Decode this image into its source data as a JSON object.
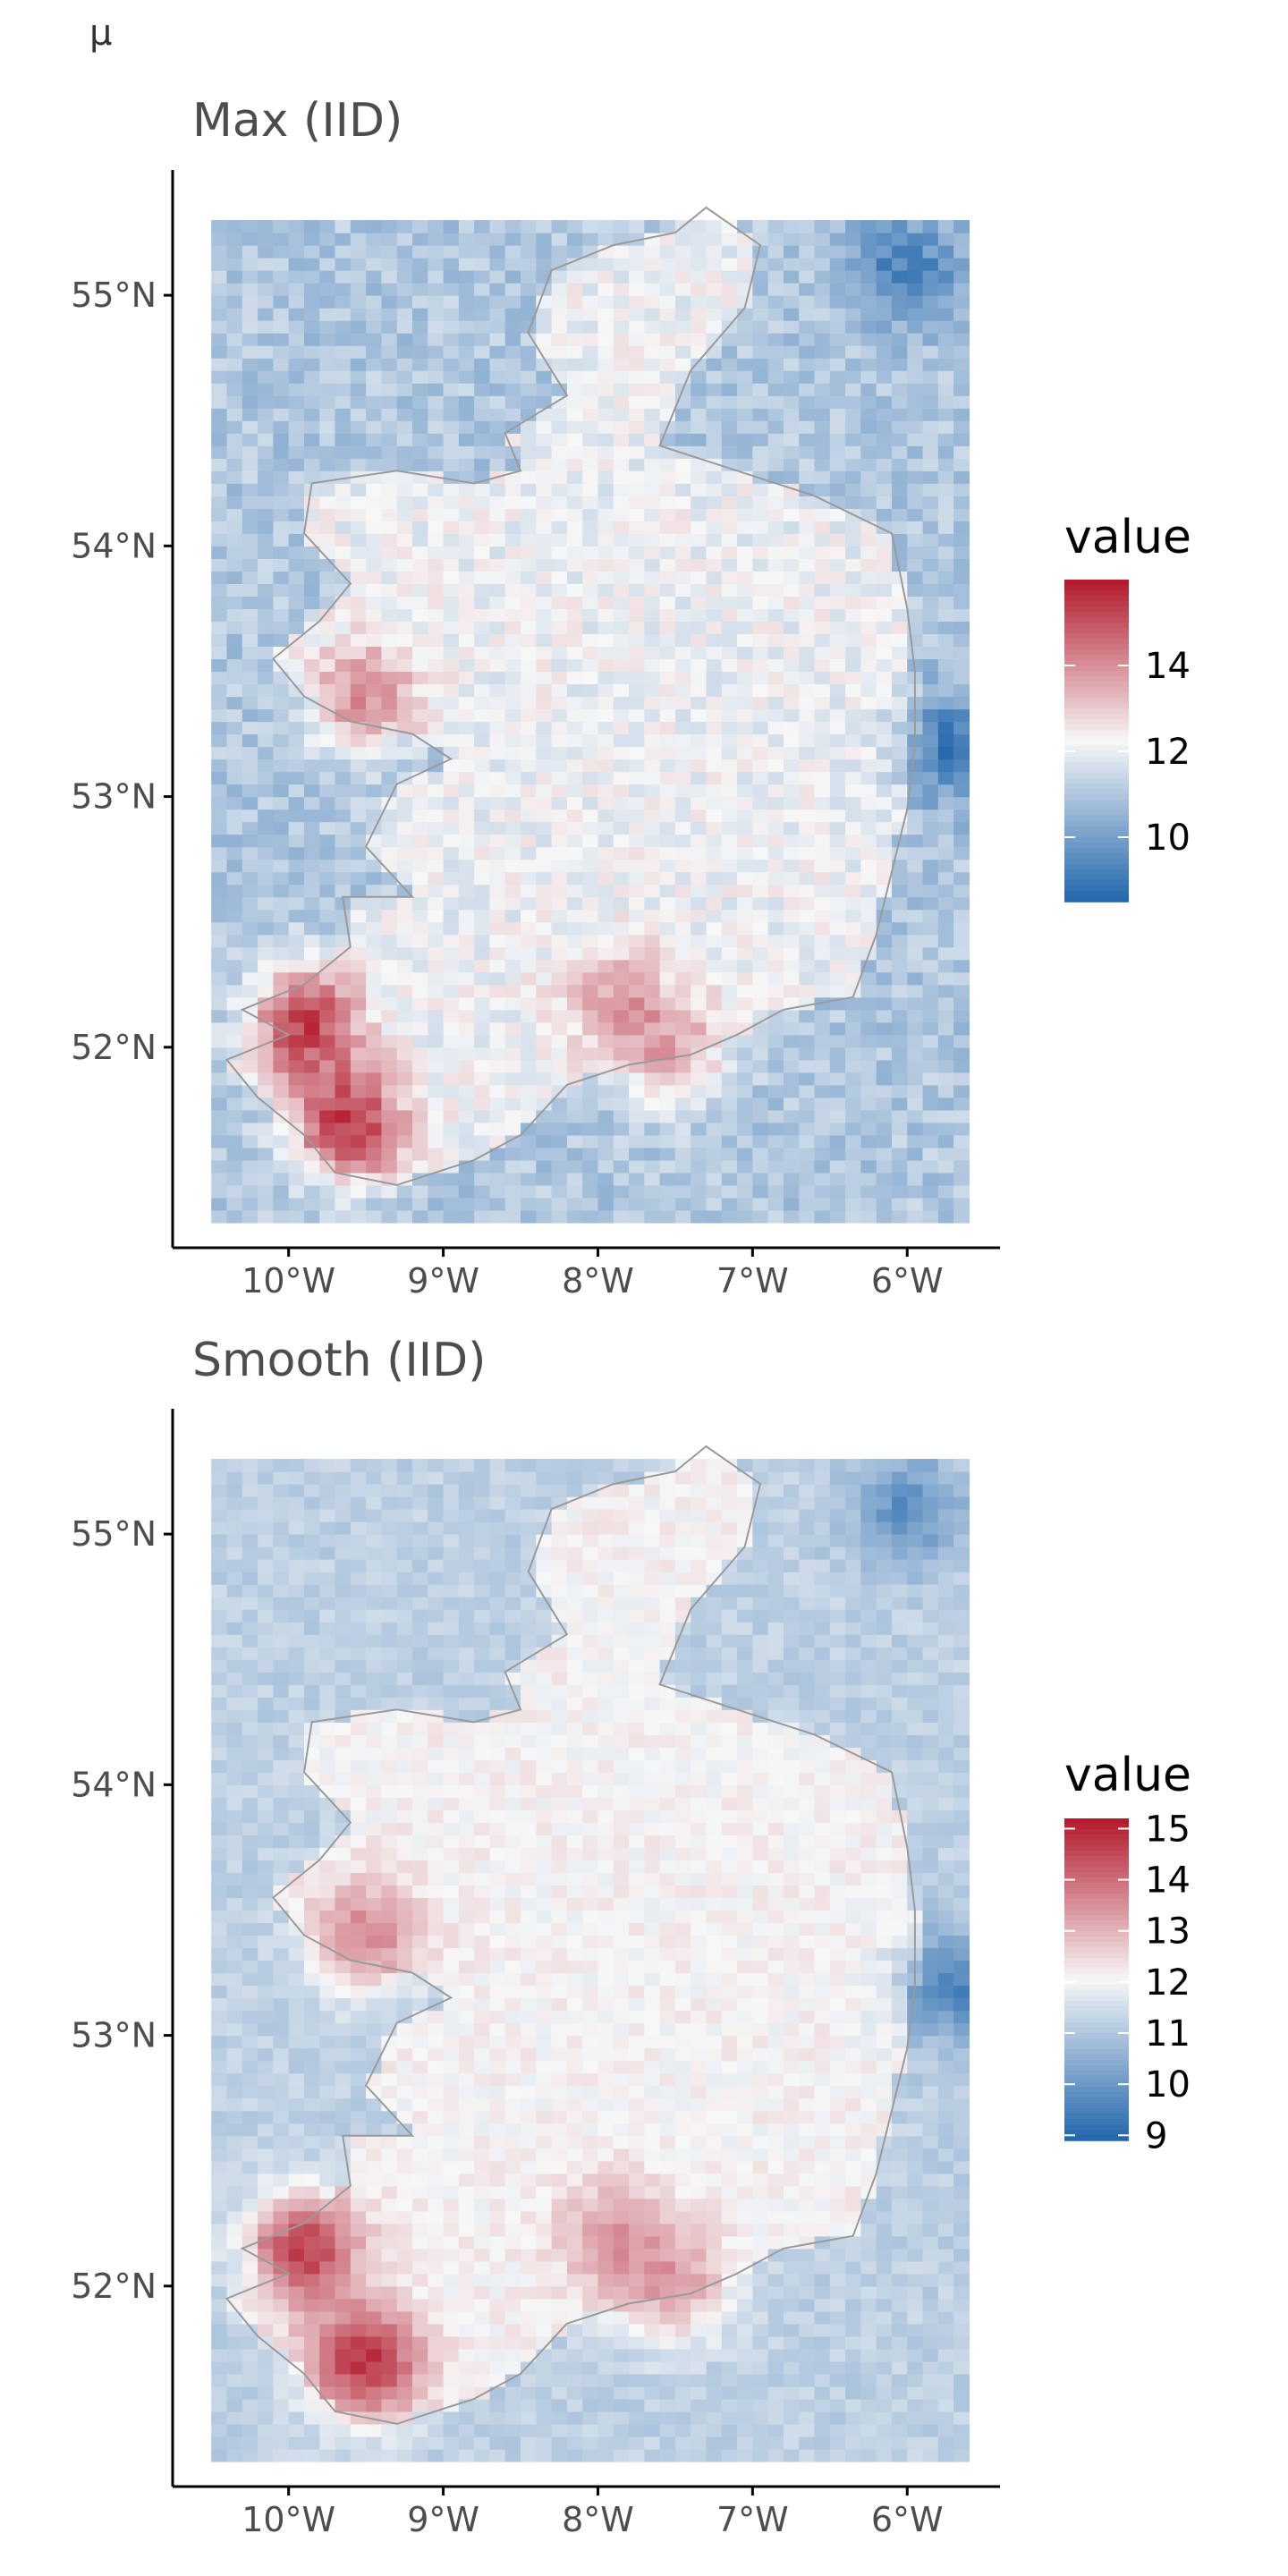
{
  "figure": {
    "label": "μ"
  },
  "colors": {
    "low": "#2166ac",
    "mid": "#f7f7f7",
    "high": "#b2182b",
    "axis": "#000000",
    "tick_text": "#4d4d4d",
    "coast": "#9a9a9a"
  },
  "chart_data": [
    {
      "type": "heatmap",
      "title": "Max (IID)",
      "x_ticks": [
        "10°W",
        "9°W",
        "8°W",
        "7°W",
        "6°W"
      ],
      "x_tick_values": [
        -10,
        -9,
        -8,
        -7,
        -6
      ],
      "y_ticks": [
        "52°N",
        "53°N",
        "54°N",
        "55°N"
      ],
      "y_tick_values": [
        52,
        53,
        54,
        55
      ],
      "xlim": [
        -10.75,
        -5.4
      ],
      "ylim": [
        51.2,
        55.5
      ],
      "grid_extent": {
        "lon": [
          -10.5,
          -5.6
        ],
        "lat": [
          51.3,
          55.3
        ]
      },
      "legend": {
        "title": "value",
        "position": "right",
        "ticks": [
          "14",
          "12",
          "10"
        ],
        "tick_values": [
          14,
          12,
          10
        ],
        "range": [
          8.5,
          16
        ]
      },
      "value_pattern": {
        "land_mean": 12.1,
        "sea_mean": 11.0,
        "min_observed": 8.6,
        "max_observed": 15.8,
        "hotspots": [
          {
            "lon": -9.6,
            "lat": 51.7,
            "value": 15.5
          },
          {
            "lon": -9.9,
            "lat": 52.1,
            "value": 15.3
          },
          {
            "lon": -9.5,
            "lat": 53.4,
            "value": 14.0
          },
          {
            "lon": -7.9,
            "lat": 52.2,
            "value": 13.6
          },
          {
            "lon": -7.5,
            "lat": 52.0,
            "value": 13.5
          }
        ],
        "coldspots": [
          {
            "lon": -6.0,
            "lat": 55.1,
            "value": 9.2
          },
          {
            "lon": -5.7,
            "lat": 53.2,
            "value": 9.0
          }
        ]
      }
    },
    {
      "type": "heatmap",
      "title": "Smooth (IID)",
      "x_ticks": [
        "10°W",
        "9°W",
        "8°W",
        "7°W",
        "6°W"
      ],
      "x_tick_values": [
        -10,
        -9,
        -8,
        -7,
        -6
      ],
      "y_ticks": [
        "52°N",
        "53°N",
        "54°N",
        "55°N"
      ],
      "y_tick_values": [
        52,
        53,
        54,
        55
      ],
      "xlim": [
        -10.75,
        -5.4
      ],
      "ylim": [
        51.2,
        55.5
      ],
      "grid_extent": {
        "lon": [
          -10.5,
          -5.6
        ],
        "lat": [
          51.3,
          55.3
        ]
      },
      "legend": {
        "title": "value",
        "position": "right",
        "ticks": [
          "15",
          "14",
          "13",
          "12",
          "11",
          "10",
          "9"
        ],
        "tick_values": [
          15,
          14,
          13,
          12,
          11,
          10,
          9
        ],
        "range": [
          8.9,
          15.2
        ]
      },
      "value_pattern": {
        "land_mean": 12.1,
        "sea_mean": 11.2,
        "min_observed": 9.1,
        "max_observed": 15.0,
        "hotspots": [
          {
            "lon": -9.5,
            "lat": 51.7,
            "value": 14.8
          },
          {
            "lon": -9.9,
            "lat": 52.15,
            "value": 14.6
          },
          {
            "lon": -9.5,
            "lat": 53.4,
            "value": 13.6
          },
          {
            "lon": -7.9,
            "lat": 52.2,
            "value": 13.3
          },
          {
            "lon": -7.5,
            "lat": 52.0,
            "value": 13.2
          }
        ],
        "coldspots": [
          {
            "lon": -6.0,
            "lat": 55.1,
            "value": 9.8
          },
          {
            "lon": -5.7,
            "lat": 53.2,
            "value": 9.6
          }
        ]
      }
    }
  ]
}
